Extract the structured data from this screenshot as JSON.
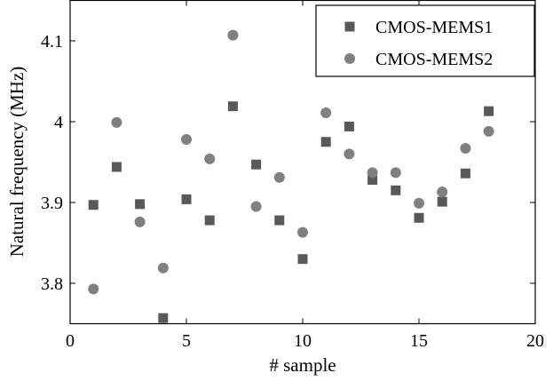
{
  "chart_data": {
    "type": "scatter",
    "title": "",
    "xlabel": "# sample",
    "ylabel": "Natural frequency (MHz)",
    "xlim": [
      0,
      20
    ],
    "ylim": [
      3.75,
      4.15
    ],
    "x_ticks": [
      "0",
      "5",
      "10",
      "15",
      "20"
    ],
    "y_ticks": [
      "3.8",
      "3.9",
      "4",
      "4.1"
    ],
    "x_tick_values": [
      0,
      5,
      10,
      15,
      20
    ],
    "y_tick_values": [
      3.8,
      3.9,
      4.0,
      4.1
    ],
    "grid": false,
    "legend_position": "top-right",
    "series": [
      {
        "name": "CMOS-MEMS1",
        "marker": "square",
        "color": "#595959",
        "points": [
          {
            "x": 1,
            "y": 3.897
          },
          {
            "x": 2,
            "y": 3.944
          },
          {
            "x": 3,
            "y": 3.898
          },
          {
            "x": 4,
            "y": 3.757
          },
          {
            "x": 5,
            "y": 3.904
          },
          {
            "x": 6,
            "y": 3.878
          },
          {
            "x": 7,
            "y": 4.019
          },
          {
            "x": 8,
            "y": 3.947
          },
          {
            "x": 9,
            "y": 3.878
          },
          {
            "x": 10,
            "y": 3.83
          },
          {
            "x": 11,
            "y": 3.975
          },
          {
            "x": 12,
            "y": 3.994
          },
          {
            "x": 13,
            "y": 3.928
          },
          {
            "x": 14,
            "y": 3.915
          },
          {
            "x": 15,
            "y": 3.881
          },
          {
            "x": 16,
            "y": 3.901
          },
          {
            "x": 17,
            "y": 3.936
          },
          {
            "x": 18,
            "y": 4.013
          }
        ]
      },
      {
        "name": "CMOS-MEMS2",
        "marker": "circle",
        "color": "#808080",
        "points": [
          {
            "x": 1,
            "y": 3.793
          },
          {
            "x": 2,
            "y": 3.999
          },
          {
            "x": 3,
            "y": 3.876
          },
          {
            "x": 4,
            "y": 3.819
          },
          {
            "x": 5,
            "y": 3.978
          },
          {
            "x": 6,
            "y": 3.954
          },
          {
            "x": 7,
            "y": 4.107
          },
          {
            "x": 8,
            "y": 3.895
          },
          {
            "x": 9,
            "y": 3.931
          },
          {
            "x": 10,
            "y": 3.863
          },
          {
            "x": 11,
            "y": 4.011
          },
          {
            "x": 12,
            "y": 3.96
          },
          {
            "x": 13,
            "y": 3.937
          },
          {
            "x": 14,
            "y": 3.937
          },
          {
            "x": 15,
            "y": 3.899
          },
          {
            "x": 16,
            "y": 3.913
          },
          {
            "x": 17,
            "y": 3.967
          },
          {
            "x": 18,
            "y": 3.988
          }
        ]
      }
    ]
  }
}
